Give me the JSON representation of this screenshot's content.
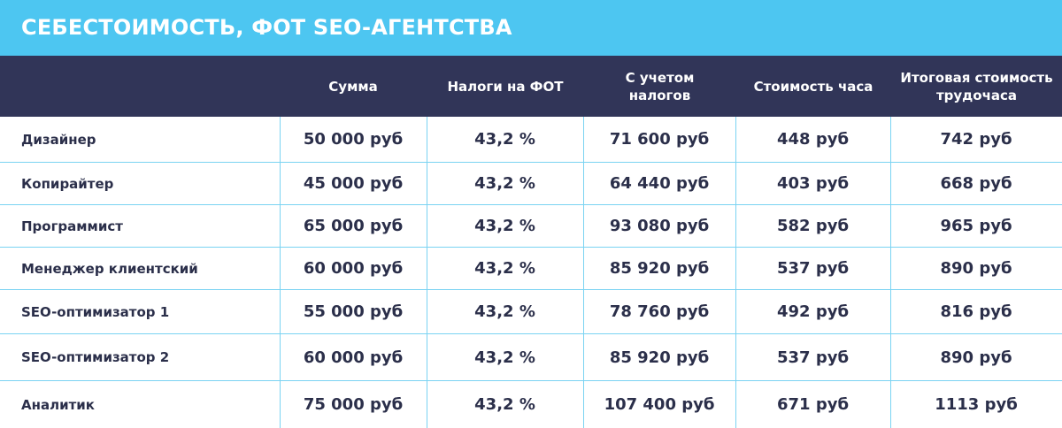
{
  "title": "СЕБЕСТОИМОСТЬ, ФОТ SEO-АГЕНТСТВА",
  "columns": [
    {
      "lines": [
        "Сумма"
      ]
    },
    {
      "lines": [
        "Налоги на ФОТ"
      ]
    },
    {
      "lines": [
        "С учетом",
        "налогов"
      ]
    },
    {
      "lines": [
        "Стоимость часа"
      ]
    },
    {
      "lines": [
        "Итоговая стоимость",
        "трудочаса"
      ]
    }
  ],
  "rows": [
    {
      "name": "Дизайнер",
      "sum": "50 000 руб",
      "tax": "43,2 %",
      "with_tax": "71 600 руб",
      "hour": "448 руб",
      "total": "742 руб"
    },
    {
      "name": "Копирайтер",
      "sum": "45 000 руб",
      "tax": "43,2 %",
      "with_tax": "64 440 руб",
      "hour": "403 руб",
      "total": "668 руб"
    },
    {
      "name": "Программист",
      "sum": "65 000 руб",
      "tax": "43,2 %",
      "with_tax": "93 080 руб",
      "hour": "582 руб",
      "total": "965 руб"
    },
    {
      "name": "Менеджер клиентский",
      "sum": "60 000 руб",
      "tax": "43,2 %",
      "with_tax": "85 920 руб",
      "hour": "537 руб",
      "total": "890 руб"
    },
    {
      "name": "SEO-оптимизатор 1",
      "sum": "55 000 руб",
      "tax": "43,2 %",
      "with_tax": "78 760 руб",
      "hour": "492 руб",
      "total": "816 руб"
    },
    {
      "name": "SEO-оптимизатор 2",
      "sum": "60 000 руб",
      "tax": "43,2 %",
      "with_tax": "85 920 руб",
      "hour": "537 руб",
      "total": "890 руб"
    },
    {
      "name": "Аналитик",
      "sum": "75 000 руб",
      "tax": "43,2 %",
      "with_tax": "107 400 руб",
      "hour": "671 руб",
      "total": "1113 руб"
    }
  ],
  "colors": {
    "title_bg": "#4dc6f1",
    "header_bg": "#313558",
    "grid": "#7ad3f2",
    "text_dark": "#2b2f4a"
  }
}
